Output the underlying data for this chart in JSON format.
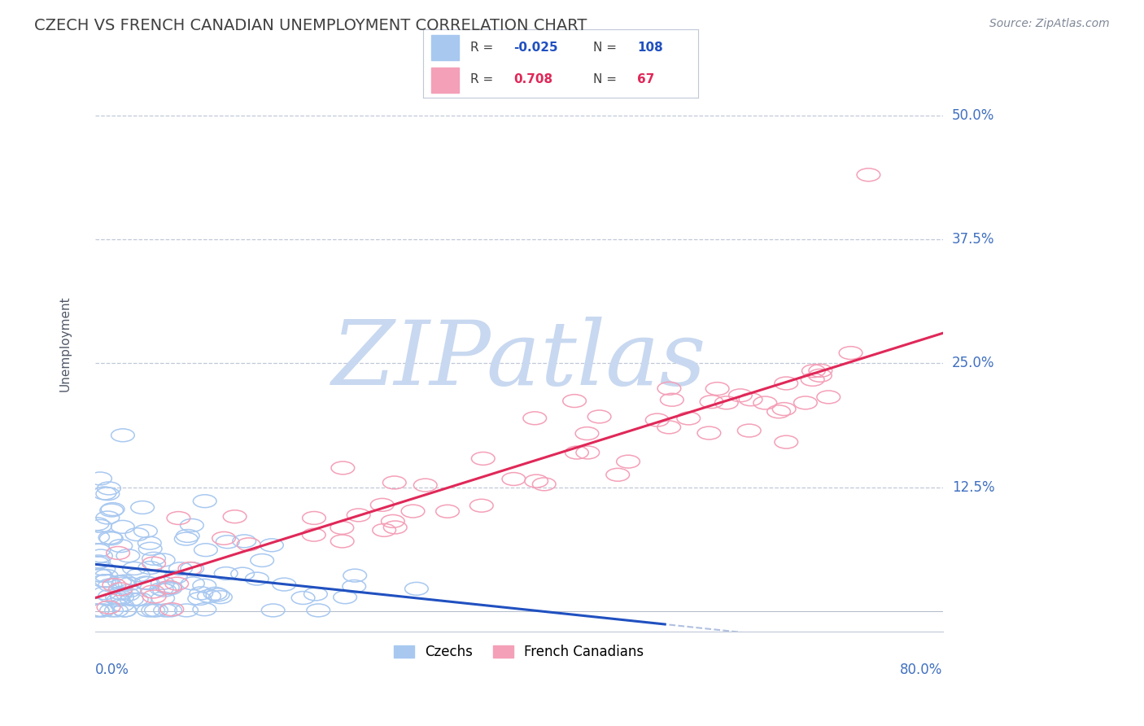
{
  "title": "CZECH VS FRENCH CANADIAN UNEMPLOYMENT CORRELATION CHART",
  "source": "Source: ZipAtlas.com",
  "ylabel": "Unemployment",
  "xlim": [
    0.0,
    0.8
  ],
  "ylim": [
    -0.02,
    0.56
  ],
  "blue_color": "#A8C8F0",
  "pink_color": "#F4A0B8",
  "blue_line_color": "#2050C0",
  "pink_line_color": "#E02858",
  "blue_dash_color": "#B0C0E0",
  "title_color": "#404040",
  "axis_label_color": "#4070C0",
  "background_color": "#FFFFFF",
  "watermark_color": "#C8D8F0",
  "grid_color": "#C0C8D8",
  "czechs_label": "Czechs",
  "french_label": "French Canadians",
  "legend_r1": "-0.025",
  "legend_n1": "108",
  "legend_r2": "0.708",
  "legend_n2": "67",
  "ytick_positions": [
    0.125,
    0.25,
    0.375,
    0.5
  ],
  "ytick_labels": [
    "12.5%",
    "25.0%",
    "37.5%",
    "50.0%"
  ]
}
